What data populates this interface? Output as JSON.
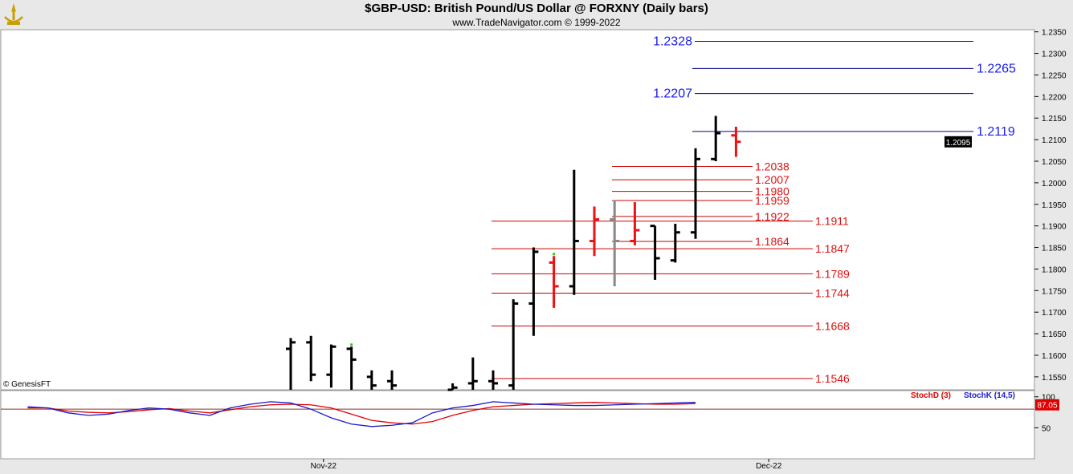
{
  "header": {
    "title": "$GBP-USD:  British Pound/US Dollar @ FORXNY  (Daily bars)",
    "subtitle": "www.TradeNavigator.com © 1999-2022"
  },
  "footer": {
    "copyright": "© GenesisFT"
  },
  "colors": {
    "bull": "#000000",
    "bear": "#ee1111",
    "neutral": "#888888",
    "fib_blue": "#000088",
    "fib_red": "#cc0000",
    "stoch_d": "#e00000",
    "stoch_k": "#1a1acc"
  },
  "chart_data": [
    {
      "type": "ohlc",
      "title": "$GBP-USD:  British Pound/US Dollar @ FORXNY  (Daily bars)",
      "ylim": [
        1.152,
        1.2355
      ],
      "y_ticks": [
        "1.2350",
        "1.2300",
        "1.2250",
        "1.2200",
        "1.2150",
        "1.2100",
        "1.2050",
        "1.2000",
        "1.1950",
        "1.1900",
        "1.1850",
        "1.1800",
        "1.1750",
        "1.1700",
        "1.1650",
        "1.1600",
        "1.1550"
      ],
      "x_labels": [
        {
          "label": "Nov-22",
          "index": 4
        },
        {
          "label": "Dec-22",
          "index": 26
        }
      ],
      "last_price": {
        "label": "1.2095",
        "value": 1.2095
      },
      "bars": [
        {
          "i": 0,
          "o": 1.1615,
          "h": 1.164,
          "l": 1.152,
          "c": 1.163,
          "color": "bull"
        },
        {
          "i": 1,
          "o": 1.163,
          "h": 1.1645,
          "l": 1.154,
          "c": 1.1555,
          "color": "bear-black"
        },
        {
          "i": 2,
          "o": 1.1555,
          "h": 1.1625,
          "l": 1.1525,
          "c": 1.162,
          "color": "bull"
        },
        {
          "i": 3,
          "o": 1.1615,
          "h": 1.162,
          "l": 1.152,
          "c": 1.159,
          "color": "bear-black"
        },
        {
          "i": 4,
          "o": 1.155,
          "h": 1.1565,
          "l": 1.152,
          "c": 1.153,
          "color": "bear-black"
        },
        {
          "i": 5,
          "o": 1.154,
          "h": 1.1565,
          "l": 1.152,
          "c": 1.153,
          "color": "bear-black"
        },
        {
          "i": 8,
          "o": 1.152,
          "h": 1.1535,
          "l": 1.152,
          "c": 1.1525,
          "color": "bear-black"
        },
        {
          "i": 9,
          "o": 1.1535,
          "h": 1.1595,
          "l": 1.152,
          "c": 1.154,
          "color": "bull"
        },
        {
          "i": 10,
          "o": 1.154,
          "h": 1.1565,
          "l": 1.152,
          "c": 1.1535,
          "color": "bear-black"
        },
        {
          "i": 11,
          "o": 1.153,
          "h": 1.173,
          "l": 1.152,
          "c": 1.172,
          "color": "bull"
        },
        {
          "i": 12,
          "o": 1.172,
          "h": 1.185,
          "l": 1.1645,
          "c": 1.184,
          "color": "bull"
        },
        {
          "i": 13,
          "o": 1.1815,
          "h": 1.183,
          "l": 1.171,
          "c": 1.176,
          "color": "bear"
        },
        {
          "i": 14,
          "o": 1.176,
          "h": 1.203,
          "l": 1.174,
          "c": 1.1865,
          "color": "bull"
        },
        {
          "i": 15,
          "o": 1.1865,
          "h": 1.1945,
          "l": 1.183,
          "c": 1.1915,
          "color": "bear"
        },
        {
          "i": 16,
          "o": 1.1915,
          "h": 1.196,
          "l": 1.176,
          "c": 1.1865,
          "color": "neutral"
        },
        {
          "i": 17,
          "o": 1.1865,
          "h": 1.1955,
          "l": 1.1855,
          "c": 1.189,
          "color": "bear"
        },
        {
          "i": 18,
          "o": 1.19,
          "h": 1.19,
          "l": 1.1775,
          "c": 1.1825,
          "color": "bear-black"
        },
        {
          "i": 19,
          "o": 1.182,
          "h": 1.1905,
          "l": 1.1815,
          "c": 1.1885,
          "color": "bull"
        },
        {
          "i": 20,
          "o": 1.1885,
          "h": 1.208,
          "l": 1.187,
          "c": 1.2055,
          "color": "bull"
        },
        {
          "i": 21,
          "o": 1.2055,
          "h": 1.2155,
          "l": 1.205,
          "c": 1.2115,
          "color": "bull"
        },
        {
          "i": 22,
          "o": 1.211,
          "h": 1.213,
          "l": 1.206,
          "c": 1.2095,
          "color": "bear"
        }
      ],
      "levels": [
        {
          "value": 1.2328,
          "label": "1.2328",
          "color": "blue",
          "label_side": "left"
        },
        {
          "value": 1.2265,
          "label": "1.2265",
          "color": "blue",
          "label_side": "right"
        },
        {
          "value": 1.2207,
          "label": "1.2207",
          "color": "blue",
          "label_side": "left"
        },
        {
          "value": 1.2119,
          "label": "1.2119",
          "color": "blue",
          "label_side": "right"
        },
        {
          "value": 1.2038,
          "label": "1.2038",
          "color": "red",
          "label_side": "mid"
        },
        {
          "value": 1.2007,
          "label": "1.2007",
          "color": "red",
          "label_side": "mid"
        },
        {
          "value": 1.198,
          "label": "1.1980",
          "color": "red",
          "label_side": "mid"
        },
        {
          "value": 1.1959,
          "label": "1.1959",
          "color": "red",
          "label_side": "mid"
        },
        {
          "value": 1.1922,
          "label": "1.1922",
          "color": "red",
          "label_side": "mid"
        },
        {
          "value": 1.1911,
          "label": "1.1911",
          "color": "red",
          "label_side": "right"
        },
        {
          "value": 1.1864,
          "label": "1.1864",
          "color": "red",
          "label_side": "mid"
        },
        {
          "value": 1.1847,
          "label": "1.1847",
          "color": "red",
          "label_side": "right"
        },
        {
          "value": 1.1789,
          "label": "1.1789",
          "color": "red",
          "label_side": "right"
        },
        {
          "value": 1.1744,
          "label": "1.1744",
          "color": "red",
          "label_side": "right"
        },
        {
          "value": 1.1668,
          "label": "1.1668",
          "color": "red",
          "label_side": "right"
        },
        {
          "value": 1.1546,
          "label": "1.1546",
          "color": "red",
          "label_side": "right"
        }
      ]
    },
    {
      "type": "line",
      "title": "",
      "ylim": [
        0,
        110
      ],
      "y_ticks": [
        "100",
        "50"
      ],
      "reference_line": 80,
      "last_value": {
        "label": "87.05",
        "value": 87.05
      },
      "series": [
        {
          "name": "StochD (3)",
          "color": "stoch_d",
          "points": [
            [
              -13,
              82
            ],
            [
              -12,
              82
            ],
            [
              -11,
              77
            ],
            [
              -10,
              75
            ],
            [
              -9,
              74
            ],
            [
              -8,
              76
            ],
            [
              -7,
              79
            ],
            [
              -6,
              81
            ],
            [
              -5,
              77
            ],
            [
              -4,
              74
            ],
            [
              -3,
              79
            ],
            [
              -2,
              84
            ],
            [
              -1,
              87
            ],
            [
              0,
              88
            ],
            [
              1,
              87
            ],
            [
              2,
              82
            ],
            [
              3,
              72
            ],
            [
              4,
              62
            ],
            [
              5,
              58
            ],
            [
              6,
              56
            ],
            [
              7,
              60
            ],
            [
              8,
              70
            ],
            [
              9,
              78
            ],
            [
              10,
              84
            ],
            [
              11,
              86
            ],
            [
              12,
              88
            ],
            [
              13,
              89
            ],
            [
              14,
              90
            ],
            [
              15,
              91
            ],
            [
              16,
              90
            ],
            [
              17,
              89
            ],
            [
              18,
              88
            ],
            [
              19,
              88
            ],
            [
              20,
              89
            ]
          ]
        },
        {
          "name": "StochK (14,5)",
          "color": "stoch_k",
          "points": [
            [
              -13,
              84
            ],
            [
              -12,
              82
            ],
            [
              -11,
              74
            ],
            [
              -10,
              70
            ],
            [
              -9,
              72
            ],
            [
              -8,
              78
            ],
            [
              -7,
              82
            ],
            [
              -6,
              80
            ],
            [
              -5,
              74
            ],
            [
              -4,
              70
            ],
            [
              -3,
              82
            ],
            [
              -2,
              88
            ],
            [
              -1,
              92
            ],
            [
              0,
              90
            ],
            [
              1,
              80
            ],
            [
              2,
              66
            ],
            [
              3,
              56
            ],
            [
              4,
              52
            ],
            [
              5,
              54
            ],
            [
              6,
              58
            ],
            [
              7,
              74
            ],
            [
              8,
              82
            ],
            [
              9,
              86
            ],
            [
              10,
              92
            ],
            [
              11,
              90
            ],
            [
              12,
              88
            ],
            [
              13,
              87
            ],
            [
              14,
              86
            ],
            [
              15,
              86
            ],
            [
              16,
              87
            ],
            [
              17,
              88
            ],
            [
              18,
              89
            ],
            [
              19,
              90
            ],
            [
              20,
              91
            ]
          ]
        }
      ]
    }
  ]
}
